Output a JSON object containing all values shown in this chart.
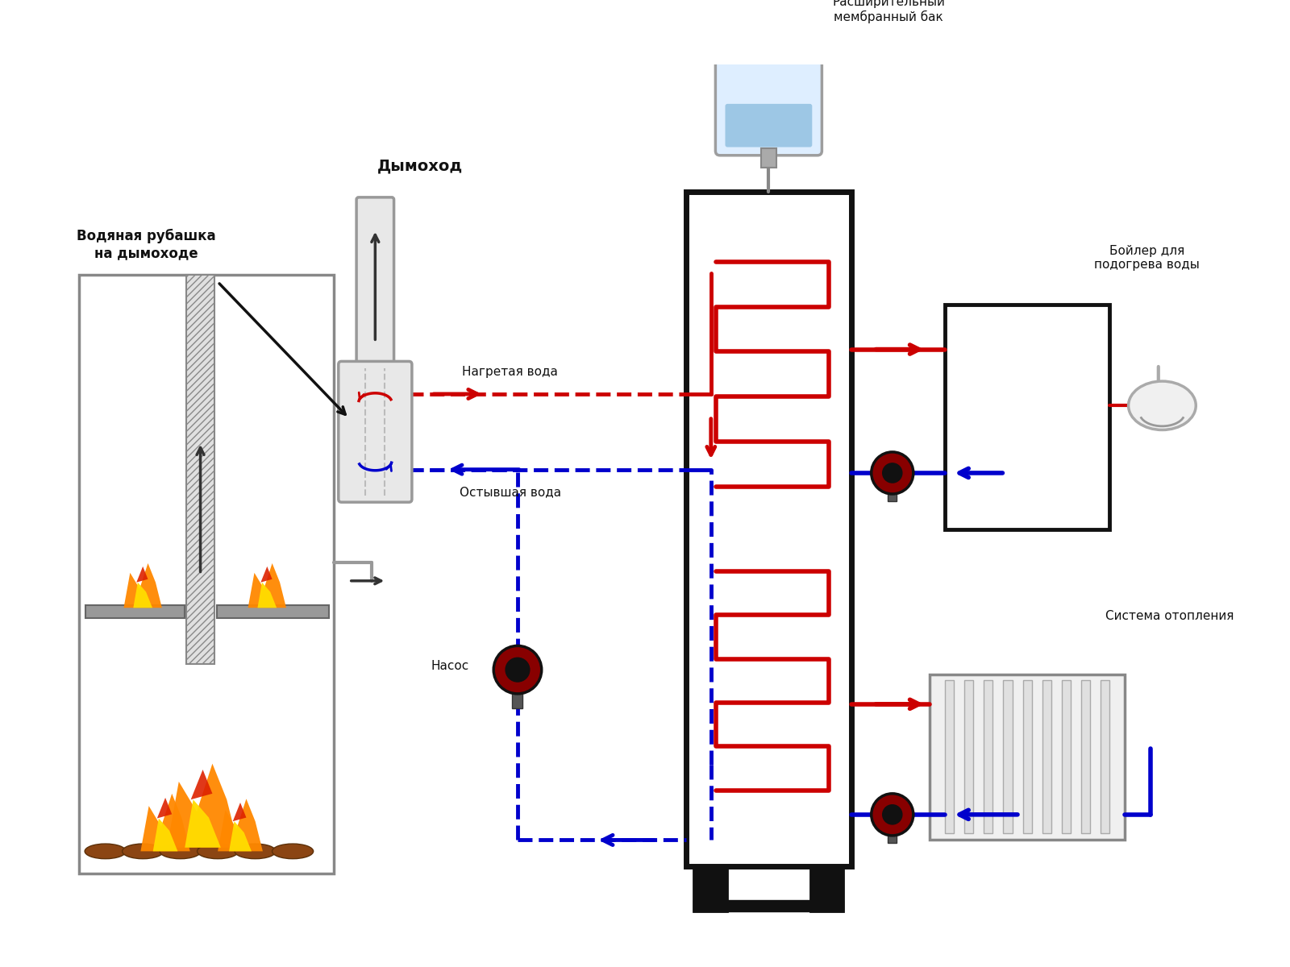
{
  "background_color": "#ffffff",
  "labels": {
    "chimney": "Дымоход",
    "water_jacket": "Водяная рубашка\nна дымоходе",
    "hot_water": "Нагретая вода",
    "cold_water": "Остывшая вода",
    "pump": "Насос",
    "expansion_tank": "Расширительный\nмембранный бак",
    "boiler": "Бойлер для\nподогрева воды",
    "heating": "Система отопления"
  },
  "colors": {
    "hot": "#cc0000",
    "cold": "#0000cc",
    "wall": "#111111",
    "gray_pipe": "#999999",
    "gray_fill": "#dddddd",
    "gray_dark": "#888888",
    "pump_red": "#cc0000",
    "pump_dark": "#222222",
    "tank_blue": "#aaccee",
    "wood": "#8B4513",
    "fire_orange": "#ff8800",
    "fire_yellow": "#ffdd00",
    "fire_red": "#dd2200"
  },
  "fontsize": 11
}
